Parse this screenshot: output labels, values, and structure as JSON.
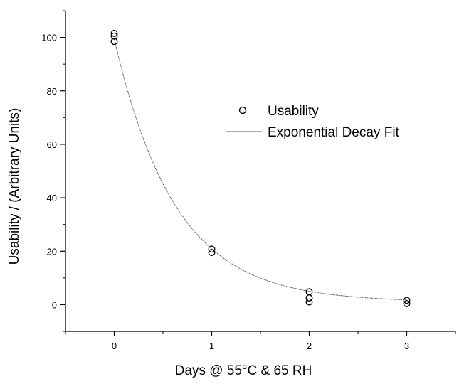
{
  "chart_data": {
    "type": "scatter",
    "title": "",
    "xlabel": "Days @ 55°C & 65 RH",
    "ylabel": "Usability / (Arbitrary Units)",
    "xlim": [
      -0.5,
      3.5
    ],
    "ylim": [
      -10,
      110
    ],
    "x_ticks": [
      0,
      1,
      2,
      3
    ],
    "x_tick_labels": [
      "0",
      "1",
      "2",
      "3"
    ],
    "y_ticks": [
      0,
      20,
      40,
      60,
      80,
      100
    ],
    "y_tick_labels": [
      "0",
      "20",
      "40",
      "60",
      "80",
      "100"
    ],
    "grid": false,
    "legend_position": "upper-right",
    "series": [
      {
        "name": "Usability",
        "type": "scatter",
        "marker": "open-circle",
        "color": "#000000",
        "points": [
          {
            "x": 0,
            "y": 101.5
          },
          {
            "x": 0,
            "y": 100.5
          },
          {
            "x": 0,
            "y": 98.5
          },
          {
            "x": 1,
            "y": 20.8
          },
          {
            "x": 1,
            "y": 19.5
          },
          {
            "x": 2,
            "y": 4.8
          },
          {
            "x": 2,
            "y": 2.5
          },
          {
            "x": 2,
            "y": 1.0
          },
          {
            "x": 3,
            "y": 1.6
          },
          {
            "x": 3,
            "y": 0.4
          }
        ]
      },
      {
        "name": "Exponential Decay Fit",
        "type": "line",
        "color": "#555555",
        "equation": "y = 98.5*exp(-1.6*x) + 1",
        "points": [
          {
            "x": 0,
            "y": 99.5
          },
          {
            "x": 0.25,
            "y": 66.9
          },
          {
            "x": 0.5,
            "y": 45.0
          },
          {
            "x": 0.75,
            "y": 30.6
          },
          {
            "x": 1,
            "y": 20.9
          },
          {
            "x": 1.25,
            "y": 14.4
          },
          {
            "x": 1.5,
            "y": 9.9
          },
          {
            "x": 1.75,
            "y": 7.0
          },
          {
            "x": 2,
            "y": 5.1
          },
          {
            "x": 2.25,
            "y": 3.7
          },
          {
            "x": 2.5,
            "y": 2.8
          },
          {
            "x": 2.75,
            "y": 2.2
          },
          {
            "x": 3,
            "y": 1.8
          }
        ]
      }
    ]
  },
  "colors": {
    "axis": "#000000",
    "marker": "#000000",
    "fit_line": "#555555",
    "background": "#ffffff"
  }
}
